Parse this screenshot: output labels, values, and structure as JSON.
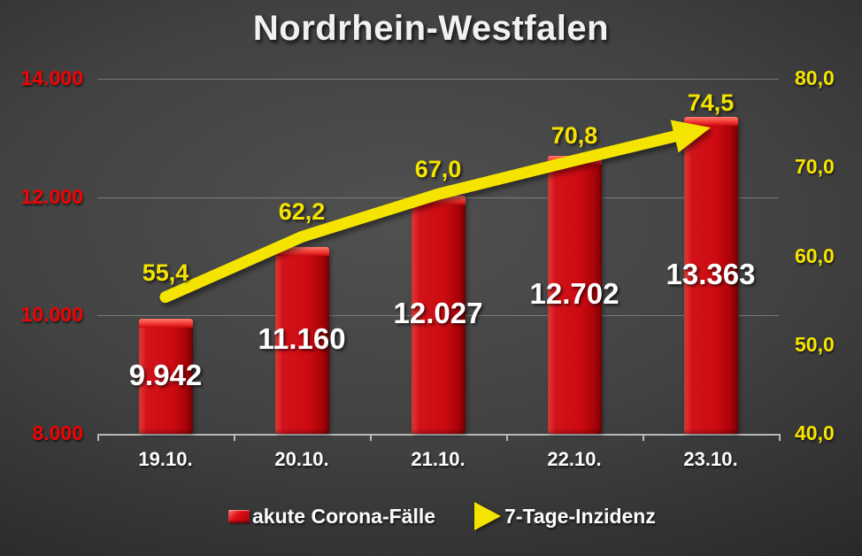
{
  "title": "Nordrhein-Westfalen",
  "chart_data": {
    "type": "bar",
    "subtype": "combo-bar-line",
    "title": "Nordrhein-Westfalen",
    "categories": [
      "19.10.",
      "20.10.",
      "21.10.",
      "22.10.",
      "23.10."
    ],
    "series": [
      {
        "name": "akute Corona-Fälle",
        "type": "bar",
        "axis": "left",
        "values": [
          9942,
          11160,
          12027,
          12702,
          13363
        ],
        "labels": [
          "9.942",
          "11.160",
          "12.027",
          "12.702",
          "13.363"
        ],
        "color": "#cb0a11",
        "label_color": "#ffffff"
      },
      {
        "name": "7-Tage-Inzidenz",
        "type": "line",
        "axis": "right",
        "values": [
          55.4,
          62.2,
          67.0,
          70.8,
          74.5
        ],
        "labels": [
          "55,4",
          "62,2",
          "67,0",
          "70,8",
          "74,5"
        ],
        "color": "#f5e400",
        "label_color": "#f5e400",
        "arrow_end": true
      }
    ],
    "left_axis": {
      "min": 8000,
      "max": 14000,
      "tick_values": [
        14000,
        12000,
        10000,
        8000
      ],
      "tick_labels": [
        "14.000",
        "12.000",
        "10.000",
        "8.000"
      ],
      "color": "#ee0404"
    },
    "right_axis": {
      "min": 40,
      "max": 80,
      "tick_values": [
        80,
        70,
        60,
        50,
        40
      ],
      "tick_labels": [
        "80,0",
        "70,0",
        "60,0",
        "50,0",
        "40,0"
      ],
      "color": "#f5e400"
    },
    "grid": "horizontal-left-axis-only",
    "legend_position": "bottom",
    "legend": [
      {
        "swatch": "bar",
        "label": "akute Corona-Fälle"
      },
      {
        "swatch": "arrow",
        "label": "7-Tage-Inzidenz"
      }
    ],
    "background": "dark-radial-gradient",
    "colors": {
      "background_center": "#505050",
      "background_edge": "#181818",
      "bar_red": "#cb0a11",
      "line_yellow": "#f5e400",
      "left_axis_red": "#ee0404",
      "title_white": "#f1f1f1",
      "axis_line_gray": "#b9b9b9"
    }
  }
}
